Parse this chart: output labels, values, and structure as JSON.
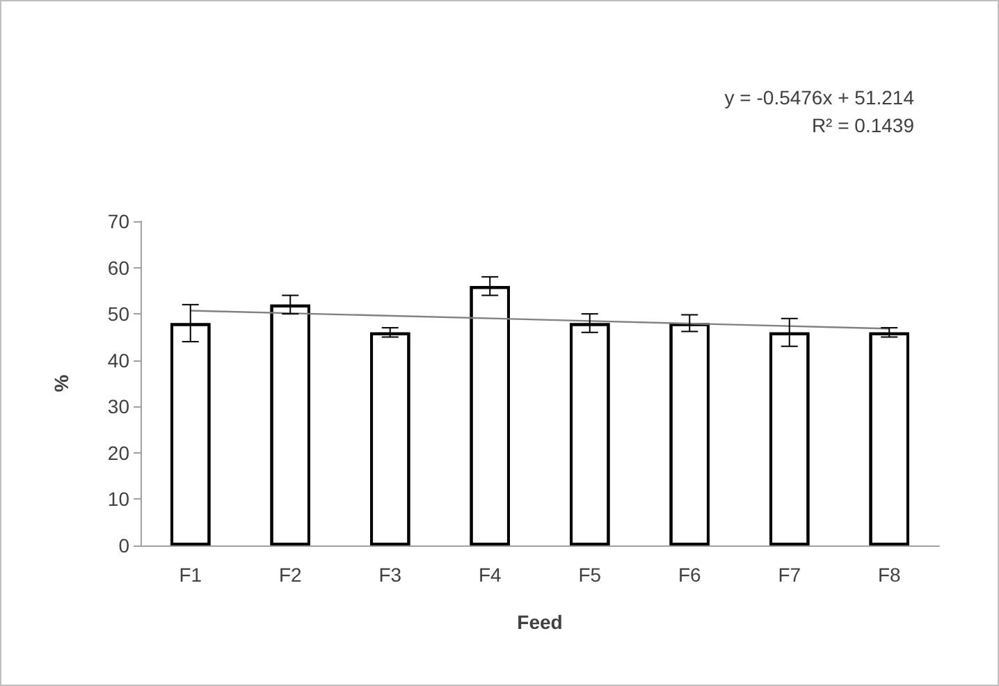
{
  "chart_data": {
    "type": "bar",
    "xlabel": "Feed",
    "ylabel": "%",
    "categories": [
      "F1",
      "F2",
      "F3",
      "F4",
      "F5",
      "F6",
      "F7",
      "F8"
    ],
    "series": [
      {
        "color": "#ffffff",
        "values": [
          48,
          52,
          46,
          56,
          48,
          48,
          46,
          46
        ],
        "errors": [
          4,
          2,
          1,
          2,
          2,
          1.8,
          3,
          1
        ]
      },
      {
        "type": "line",
        "color": "#808080",
        "x": [
          "F1",
          "F8"
        ],
        "values": [
          50.7,
          46.8
        ]
      }
    ],
    "annotations": [
      "y = -0.5476x + 51.214",
      "R² = 0.1439"
    ],
    "ylim": [
      0,
      70
    ],
    "yticks": [
      0,
      10,
      20,
      30,
      40,
      50,
      60,
      70
    ],
    "grid": false,
    "marker": "none"
  }
}
